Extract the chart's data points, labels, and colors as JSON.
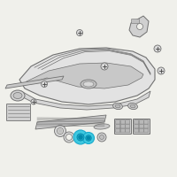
{
  "bg_color": "#f0f0eb",
  "highlight_color": "#3ec8e0",
  "outline_color": "#707070",
  "dark_color": "#444444",
  "figsize": [
    2.0,
    2.0
  ],
  "dpi": 100
}
